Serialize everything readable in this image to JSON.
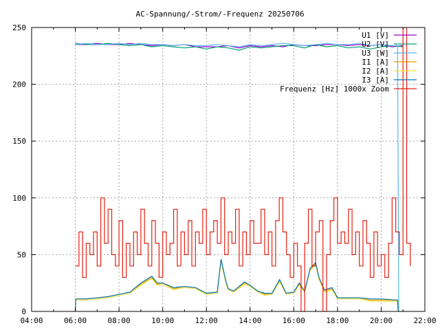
{
  "chart_data": {
    "type": "line",
    "title": "AC-Spannung/-Strom/-Frequenz 20250706",
    "xlabel": "",
    "ylabel": "",
    "xlim": [
      4,
      22
    ],
    "ylim": [
      0,
      250
    ],
    "grid": true,
    "legend_position": "top-right",
    "x_ticks": [
      {
        "v": 4,
        "label": "04:00"
      },
      {
        "v": 6,
        "label": "06:00"
      },
      {
        "v": 8,
        "label": "08:00"
      },
      {
        "v": 10,
        "label": "10:00"
      },
      {
        "v": 12,
        "label": "12:00"
      },
      {
        "v": 14,
        "label": "14:00"
      },
      {
        "v": 16,
        "label": "16:00"
      },
      {
        "v": 18,
        "label": "18:00"
      },
      {
        "v": 20,
        "label": "20:00"
      },
      {
        "v": 22,
        "label": "22:00"
      }
    ],
    "y_ticks": [
      {
        "v": 0,
        "label": "0"
      },
      {
        "v": 50,
        "label": "50"
      },
      {
        "v": 100,
        "label": "100"
      },
      {
        "v": 150,
        "label": "150"
      },
      {
        "v": 200,
        "label": "200"
      },
      {
        "v": 250,
        "label": "250"
      }
    ],
    "series": [
      {
        "name": "U1 [V]",
        "color": "#9400d3",
        "x": [
          6,
          6.5,
          7,
          7.5,
          8,
          8.5,
          9,
          9.5,
          10,
          10.5,
          11,
          11.5,
          12,
          12.5,
          13,
          13.5,
          14,
          14.5,
          15,
          15.5,
          16,
          16.5,
          17,
          17.5,
          18,
          18.5,
          19,
          19.5,
          20,
          20.5,
          21
        ],
        "y": [
          235,
          235,
          236,
          235,
          235,
          236,
          235,
          234,
          235,
          234,
          235,
          233,
          233,
          233,
          234,
          232,
          234,
          233,
          234,
          233,
          235,
          234,
          234,
          235,
          235,
          234,
          235,
          234,
          235,
          233,
          234
        ]
      },
      {
        "name": "U2 [V]",
        "color": "#009e73",
        "x": [
          6,
          6.5,
          7,
          7.5,
          8,
          8.5,
          9,
          9.5,
          10,
          10.5,
          11,
          11.5,
          12,
          12.5,
          13,
          13.5,
          14,
          14.5,
          15,
          15.5,
          16,
          16.5,
          17,
          17.5,
          18,
          18.5,
          19,
          19.5,
          20,
          20.5,
          21
        ],
        "y": [
          236,
          235,
          235,
          236,
          235,
          234,
          235,
          233,
          234,
          233,
          232,
          233,
          231,
          233,
          232,
          230,
          233,
          232,
          233,
          234,
          234,
          232,
          235,
          233,
          234,
          232,
          233,
          231,
          233,
          234,
          233
        ]
      },
      {
        "name": "U3 [W]",
        "color": "#56b4e9",
        "x": [
          6,
          6.5,
          7,
          7.5,
          8,
          8.5,
          9,
          9.5,
          10,
          10.5,
          11,
          11.5,
          12,
          12.5,
          13,
          13.5,
          14,
          14.5,
          15,
          15.5,
          16,
          16.5,
          17,
          17.5,
          18,
          18.5,
          19,
          19.5,
          20,
          20.5,
          20.75,
          20.78,
          20.8,
          20.85,
          21
        ],
        "y": [
          235,
          236,
          235,
          235,
          236,
          235,
          236,
          235,
          235,
          234,
          235,
          234,
          234,
          235,
          234,
          233,
          235,
          234,
          235,
          236,
          235,
          234,
          235,
          236,
          235,
          235,
          236,
          234,
          235,
          234,
          234,
          118,
          0,
          0,
          0
        ]
      },
      {
        "name": "I1 [A]",
        "color": "#e69f00",
        "x": [
          6,
          6.02,
          6.5,
          7,
          7.5,
          8,
          8.5,
          9,
          9.5,
          9.75,
          10,
          10.5,
          11,
          11.5,
          12,
          12.5,
          12.67,
          12.9,
          13,
          13.25,
          13.75,
          14,
          14.35,
          14.67,
          15,
          15.35,
          15.65,
          16,
          16.25,
          16.5,
          16.75,
          17,
          17.15,
          17.4,
          17.75,
          18,
          19,
          19.5,
          20,
          20.75,
          20.78
        ],
        "y": [
          0,
          11,
          11,
          12,
          13,
          15,
          17,
          24,
          30,
          24,
          25,
          20,
          22,
          21,
          16,
          17,
          45,
          25,
          20,
          18,
          25,
          23,
          18,
          15,
          16,
          27,
          16,
          17,
          24,
          18,
          37,
          42,
          29,
          18,
          20,
          12,
          12,
          10,
          10,
          10,
          0
        ]
      },
      {
        "name": "I2 [A]",
        "color": "#f0e442",
        "x": [
          6,
          6.02,
          6.5,
          7,
          7.5,
          8,
          8.5,
          9,
          9.5,
          9.75,
          10,
          10.5,
          11,
          11.5,
          12,
          12.5,
          12.67,
          12.9,
          13,
          13.25,
          13.75,
          14,
          14.35,
          14.67,
          15,
          15.35,
          15.65,
          16,
          16.25,
          16.5,
          16.75,
          17,
          17.15,
          17.4,
          17.75,
          18,
          19,
          19.5,
          20,
          20.75,
          20.78
        ],
        "y": [
          0,
          10,
          10,
          11,
          12,
          14,
          16,
          23,
          29,
          23,
          24,
          19,
          21,
          20,
          15,
          16,
          44,
          24,
          19,
          17,
          24,
          22,
          17,
          14,
          15,
          26,
          15,
          16,
          23,
          17,
          36,
          41,
          28,
          17,
          19,
          11,
          11,
          9,
          9,
          9,
          0
        ]
      },
      {
        "name": "I3 [A]",
        "color": "#0072b2",
        "x": [
          6,
          6.02,
          6.5,
          7,
          7.5,
          8,
          8.5,
          9,
          9.5,
          9.75,
          10,
          10.5,
          11,
          11.5,
          12,
          12.5,
          12.67,
          12.9,
          13,
          13.25,
          13.75,
          14,
          14.35,
          14.67,
          15,
          15.35,
          15.65,
          16,
          16.25,
          16.5,
          16.75,
          17,
          17.15,
          17.4,
          17.75,
          18,
          19,
          19.5,
          20,
          20.75,
          20.78
        ],
        "y": [
          0,
          11,
          11,
          12,
          13,
          15,
          17,
          25,
          31,
          25,
          25,
          21,
          22,
          21,
          16,
          17,
          46,
          26,
          20,
          18,
          26,
          23,
          18,
          16,
          16,
          28,
          16,
          17,
          25,
          18,
          38,
          43,
          30,
          19,
          21,
          12,
          12,
          11,
          11,
          10,
          0
        ]
      },
      {
        "name": "Frequenz [Hz] 1000x Zoom",
        "color": "#e51e10",
        "x_start": 6,
        "x_step": 0.16667,
        "y": [
          40,
          70,
          30,
          60,
          50,
          70,
          40,
          100,
          60,
          90,
          50,
          40,
          80,
          30,
          60,
          40,
          70,
          50,
          90,
          60,
          40,
          80,
          60,
          30,
          70,
          50,
          60,
          90,
          40,
          70,
          50,
          80,
          40,
          70,
          60,
          90,
          50,
          70,
          80,
          60,
          100,
          50,
          70,
          60,
          90,
          40,
          70,
          50,
          80,
          60,
          60,
          90,
          50,
          70,
          40,
          80,
          100,
          70,
          50,
          30,
          60,
          40,
          0,
          60,
          90,
          40,
          70,
          80,
          0,
          50,
          80,
          100,
          60,
          70,
          60,
          90,
          50,
          70,
          40,
          80,
          60,
          30,
          70,
          40,
          50,
          30,
          60,
          100,
          70,
          50,
          250,
          60,
          40
        ]
      }
    ]
  }
}
